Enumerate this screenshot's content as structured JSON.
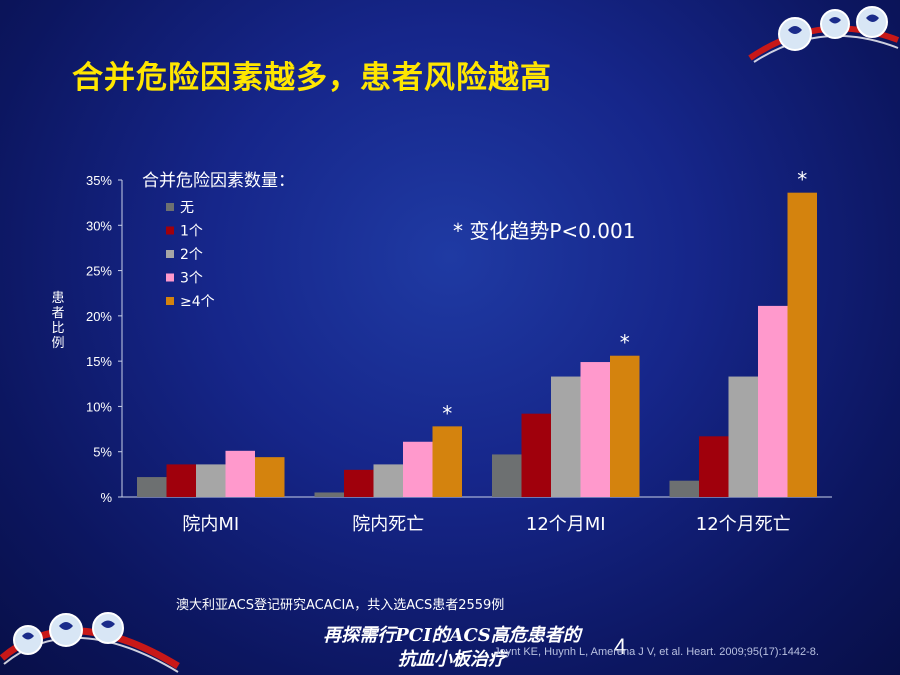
{
  "title": "合并危险因素越多，患者风险越高",
  "note": "澳大利亚ACS登记研究ACACIA，共入选ACS患者2559例",
  "footer": "再探需行PCI的ACS高危患者的抗血小板治疗",
  "page_number": "4",
  "citation": "Joynt KE, Huynh L, Amerena J V, et al. Heart. 2009;95(17):1442-8.",
  "icons": [
    "swirl-logo-icon"
  ],
  "chart_data": {
    "type": "bar",
    "ylabel": "患者比例",
    "ylim": [
      0,
      35
    ],
    "yticks": [
      "%",
      "5%",
      "10%",
      "15%",
      "20%",
      "25%",
      "30%",
      "35%"
    ],
    "categories": [
      "院内MI",
      "院内死亡",
      "12个月MI",
      "12个月死亡"
    ],
    "legend_title": "合并危险因素数量：",
    "legend_position": "top-left",
    "annotation": "* 变化趋势P<0.001",
    "significance_marker": "*",
    "grid": false,
    "series": [
      {
        "name": "无",
        "color": "#6d7071",
        "values": [
          2.2,
          0.5,
          4.7,
          1.8
        ]
      },
      {
        "name": "1个",
        "color": "#a0000c",
        "values": [
          3.6,
          3.0,
          9.2,
          6.7
        ]
      },
      {
        "name": "2个",
        "color": "#a6a6a6",
        "values": [
          3.6,
          3.6,
          13.3,
          13.3
        ]
      },
      {
        "name": "3个",
        "color": "#ff99cc",
        "values": [
          5.1,
          6.1,
          14.9,
          21.1
        ]
      },
      {
        "name": "≥4个",
        "color": "#d4830e",
        "values": [
          4.4,
          7.8,
          15.6,
          33.6
        ]
      }
    ]
  }
}
